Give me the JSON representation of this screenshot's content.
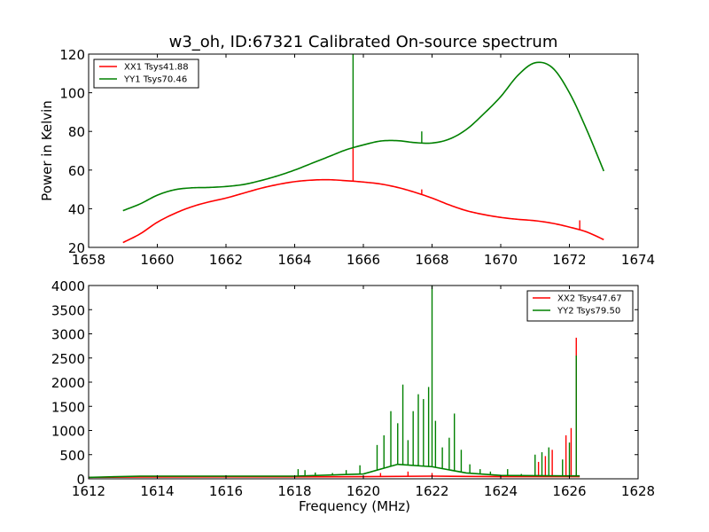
{
  "title": "w3_oh, ID:67321 Calibrated On-source spectrum",
  "colors": {
    "xx": "#ff0000",
    "yy": "#008000",
    "axes": "#000000",
    "background": "#ffffff"
  },
  "chart_data": [
    {
      "type": "line",
      "ylabel": "Power in Kelvin",
      "xlabel": "",
      "xlim": [
        1658,
        1674
      ],
      "ylim": [
        20,
        120
      ],
      "xticks": [
        1658,
        1660,
        1662,
        1664,
        1666,
        1668,
        1670,
        1672,
        1674
      ],
      "yticks": [
        20,
        40,
        60,
        80,
        100,
        120
      ],
      "grid": false,
      "legend_position": "top-left",
      "series": [
        {
          "name": "XX1 Tsys41.88",
          "color": "#ff0000",
          "x": [
            1659.0,
            1659.5,
            1660.0,
            1660.5,
            1661.0,
            1661.5,
            1662.0,
            1662.5,
            1663.0,
            1663.5,
            1664.0,
            1664.5,
            1665.0,
            1665.5,
            1666.0,
            1666.5,
            1667.0,
            1667.5,
            1668.0,
            1668.5,
            1669.0,
            1669.5,
            1670.0,
            1670.5,
            1671.0,
            1671.5,
            1672.0,
            1672.5,
            1673.0
          ],
          "y": [
            22.5,
            27,
            33,
            37.5,
            41,
            43.5,
            45.5,
            48,
            50.5,
            52.5,
            54,
            54.8,
            55,
            54.5,
            53.8,
            52.8,
            51,
            48.5,
            45.5,
            42,
            39,
            37,
            35.5,
            34.5,
            33.8,
            32.5,
            30.5,
            28,
            24
          ],
          "spikes": [
            {
              "x": 1665.7,
              "y": 72
            },
            {
              "x": 1667.7,
              "y": 50
            },
            {
              "x": 1672.3,
              "y": 34
            }
          ]
        },
        {
          "name": "YY1 Tsys70.46",
          "color": "#008000",
          "x": [
            1659.0,
            1659.5,
            1660.0,
            1660.5,
            1661.0,
            1661.5,
            1662.0,
            1662.5,
            1663.0,
            1663.5,
            1664.0,
            1664.5,
            1665.0,
            1665.5,
            1666.0,
            1666.5,
            1667.0,
            1667.5,
            1668.0,
            1668.5,
            1669.0,
            1669.5,
            1670.0,
            1670.5,
            1671.0,
            1671.5,
            1672.0,
            1672.5,
            1673.0
          ],
          "y": [
            39,
            42.5,
            47,
            49.8,
            50.8,
            51,
            51.5,
            52.5,
            54.5,
            57,
            60,
            63.5,
            67,
            70.5,
            73,
            75,
            75.2,
            74.2,
            74,
            76,
            81,
            89,
            98,
            109,
            115.5,
            113,
            100,
            81,
            59.5
          ],
          "spikes": [
            {
              "x": 1665.7,
              "y": 120
            },
            {
              "x": 1667.7,
              "y": 80
            }
          ]
        }
      ]
    },
    {
      "type": "line",
      "xlabel": "Frequency (MHz)",
      "ylabel": "",
      "xlim": [
        1612,
        1628
      ],
      "ylim": [
        0,
        4000
      ],
      "xticks": [
        1612,
        1614,
        1616,
        1618,
        1620,
        1622,
        1624,
        1626,
        1628
      ],
      "yticks": [
        0,
        500,
        1000,
        1500,
        2000,
        2500,
        3000,
        3500,
        4000
      ],
      "grid": false,
      "legend_position": "top-right",
      "series": [
        {
          "name": "XX2 Tsys47.67",
          "color": "#ff0000",
          "baseline": [
            [
              1612.0,
              30
            ],
            [
              1613.5,
              38
            ],
            [
              1616.0,
              40
            ],
            [
              1618.0,
              40
            ],
            [
              1620.0,
              45
            ],
            [
              1622.0,
              55
            ],
            [
              1624.0,
              45
            ],
            [
              1626.0,
              45
            ],
            [
              1626.3,
              45
            ]
          ],
          "spikes": [
            {
              "x": 1620.5,
              "y": 120
            },
            {
              "x": 1621.3,
              "y": 150
            },
            {
              "x": 1622.0,
              "y": 120
            },
            {
              "x": 1625.1,
              "y": 350
            },
            {
              "x": 1625.3,
              "y": 470
            },
            {
              "x": 1625.5,
              "y": 600
            },
            {
              "x": 1625.9,
              "y": 900
            },
            {
              "x": 1626.05,
              "y": 1050
            },
            {
              "x": 1626.2,
              "y": 2920
            }
          ]
        },
        {
          "name": "YY2 Tsys79.50",
          "color": "#008000",
          "baseline": [
            [
              1612.0,
              30
            ],
            [
              1613.5,
              55
            ],
            [
              1616.0,
              55
            ],
            [
              1618.0,
              55
            ],
            [
              1620.0,
              100
            ],
            [
              1621.0,
              300
            ],
            [
              1622.0,
              250
            ],
            [
              1623.0,
              120
            ],
            [
              1624.0,
              70
            ],
            [
              1626.0,
              60
            ],
            [
              1626.3,
              60
            ]
          ],
          "spikes": [
            {
              "x": 1618.1,
              "y": 200
            },
            {
              "x": 1618.3,
              "y": 180
            },
            {
              "x": 1618.6,
              "y": 130
            },
            {
              "x": 1619.1,
              "y": 120
            },
            {
              "x": 1619.5,
              "y": 180
            },
            {
              "x": 1619.9,
              "y": 280
            },
            {
              "x": 1620.4,
              "y": 700
            },
            {
              "x": 1620.6,
              "y": 900
            },
            {
              "x": 1620.8,
              "y": 1400
            },
            {
              "x": 1621.0,
              "y": 1150
            },
            {
              "x": 1621.15,
              "y": 1950
            },
            {
              "x": 1621.3,
              "y": 800
            },
            {
              "x": 1621.45,
              "y": 1400
            },
            {
              "x": 1621.6,
              "y": 1750
            },
            {
              "x": 1621.75,
              "y": 1650
            },
            {
              "x": 1621.9,
              "y": 1900
            },
            {
              "x": 1622.0,
              "y": 4000
            },
            {
              "x": 1622.1,
              "y": 1200
            },
            {
              "x": 1622.3,
              "y": 650
            },
            {
              "x": 1622.5,
              "y": 850
            },
            {
              "x": 1622.65,
              "y": 1350
            },
            {
              "x": 1622.85,
              "y": 600
            },
            {
              "x": 1623.1,
              "y": 300
            },
            {
              "x": 1623.4,
              "y": 200
            },
            {
              "x": 1623.7,
              "y": 150
            },
            {
              "x": 1624.2,
              "y": 200
            },
            {
              "x": 1624.6,
              "y": 100
            },
            {
              "x": 1625.0,
              "y": 500
            },
            {
              "x": 1625.2,
              "y": 550
            },
            {
              "x": 1625.4,
              "y": 650
            },
            {
              "x": 1625.8,
              "y": 400
            },
            {
              "x": 1626.0,
              "y": 750
            },
            {
              "x": 1626.2,
              "y": 2550
            }
          ]
        }
      ]
    }
  ]
}
